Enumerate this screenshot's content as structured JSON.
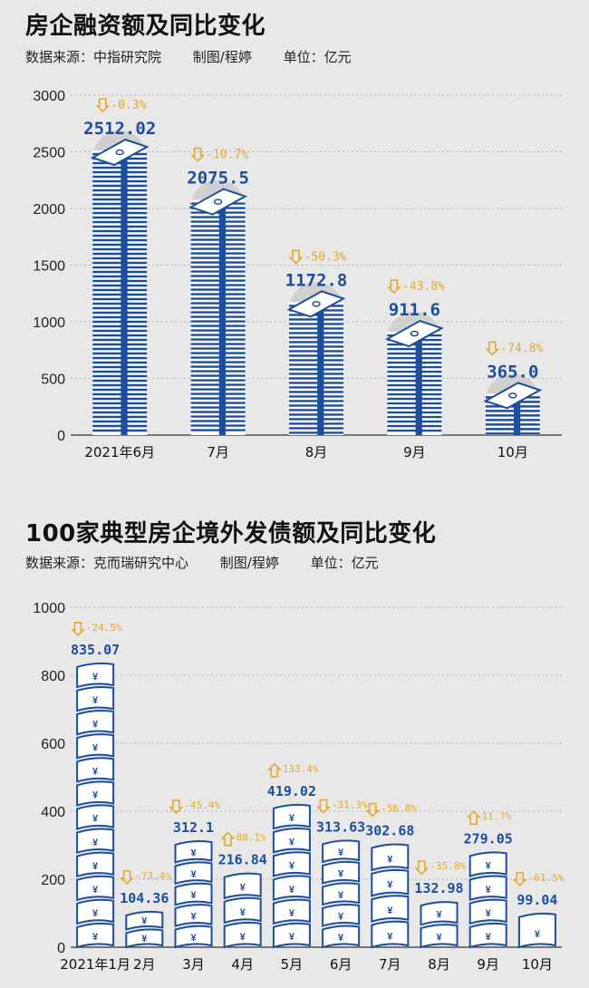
{
  "chart_data": [
    {
      "type": "bar",
      "title": "房企融资额及同比变化",
      "source": "数据来源：中指研究院",
      "author": "制图/程婷",
      "unit": "单位：亿元",
      "categories": [
        "2021年6月",
        "7月",
        "8月",
        "9月",
        "10月"
      ],
      "values": [
        2512.02,
        2075.5,
        1172.8,
        911.6,
        365.0
      ],
      "value_labels": [
        "2512.02",
        "2075.5",
        "1172.8",
        "911.6",
        "365.0"
      ],
      "yoy_labels": [
        "-0.3%",
        "-10.7%",
        "-50.3%",
        "-43.8%",
        "-74.8%"
      ],
      "yoy_direction": [
        "down",
        "down",
        "down",
        "down",
        "down"
      ],
      "yticks": [
        0,
        500,
        1000,
        1500,
        2000,
        2500,
        3000
      ],
      "ylim": [
        0,
        3000
      ],
      "grid": true,
      "bar_color": "#1d4e9e",
      "yoy_color": "#e6a82a"
    },
    {
      "type": "bar",
      "title": "100家典型房企境外发债额及同比变化",
      "source": "数据来源：克而瑞研究中心",
      "author": "制图/程婷",
      "unit": "单位：亿元",
      "categories": [
        "2021年1月",
        "2月",
        "3月",
        "4月",
        "5月",
        "6月",
        "7月",
        "8月",
        "9月",
        "10月"
      ],
      "values": [
        835.07,
        104.36,
        312.1,
        216.84,
        419.02,
        313.63,
        302.68,
        132.98,
        279.05,
        99.04
      ],
      "value_labels": [
        "835.07",
        "104.36",
        "312.1",
        "216.84",
        "419.02",
        "313.63",
        "302.68",
        "132.98",
        "279.05",
        "99.04"
      ],
      "yoy_labels": [
        "-24.5%",
        "-73.4%",
        "-45.4%",
        "88.1%",
        "133.4%",
        "-31.3%",
        "-56.8%",
        "-35.8%",
        "11.7%",
        "-61.5%"
      ],
      "yoy_direction": [
        "down",
        "down",
        "down",
        "up",
        "up",
        "down",
        "down",
        "down",
        "up",
        "down"
      ],
      "yticks": [
        0,
        200,
        400,
        600,
        800,
        1000
      ],
      "ylim": [
        0,
        1000
      ],
      "grid": true,
      "bar_color": "#1d4e9e",
      "yoy_color": "#e6a82a"
    }
  ]
}
